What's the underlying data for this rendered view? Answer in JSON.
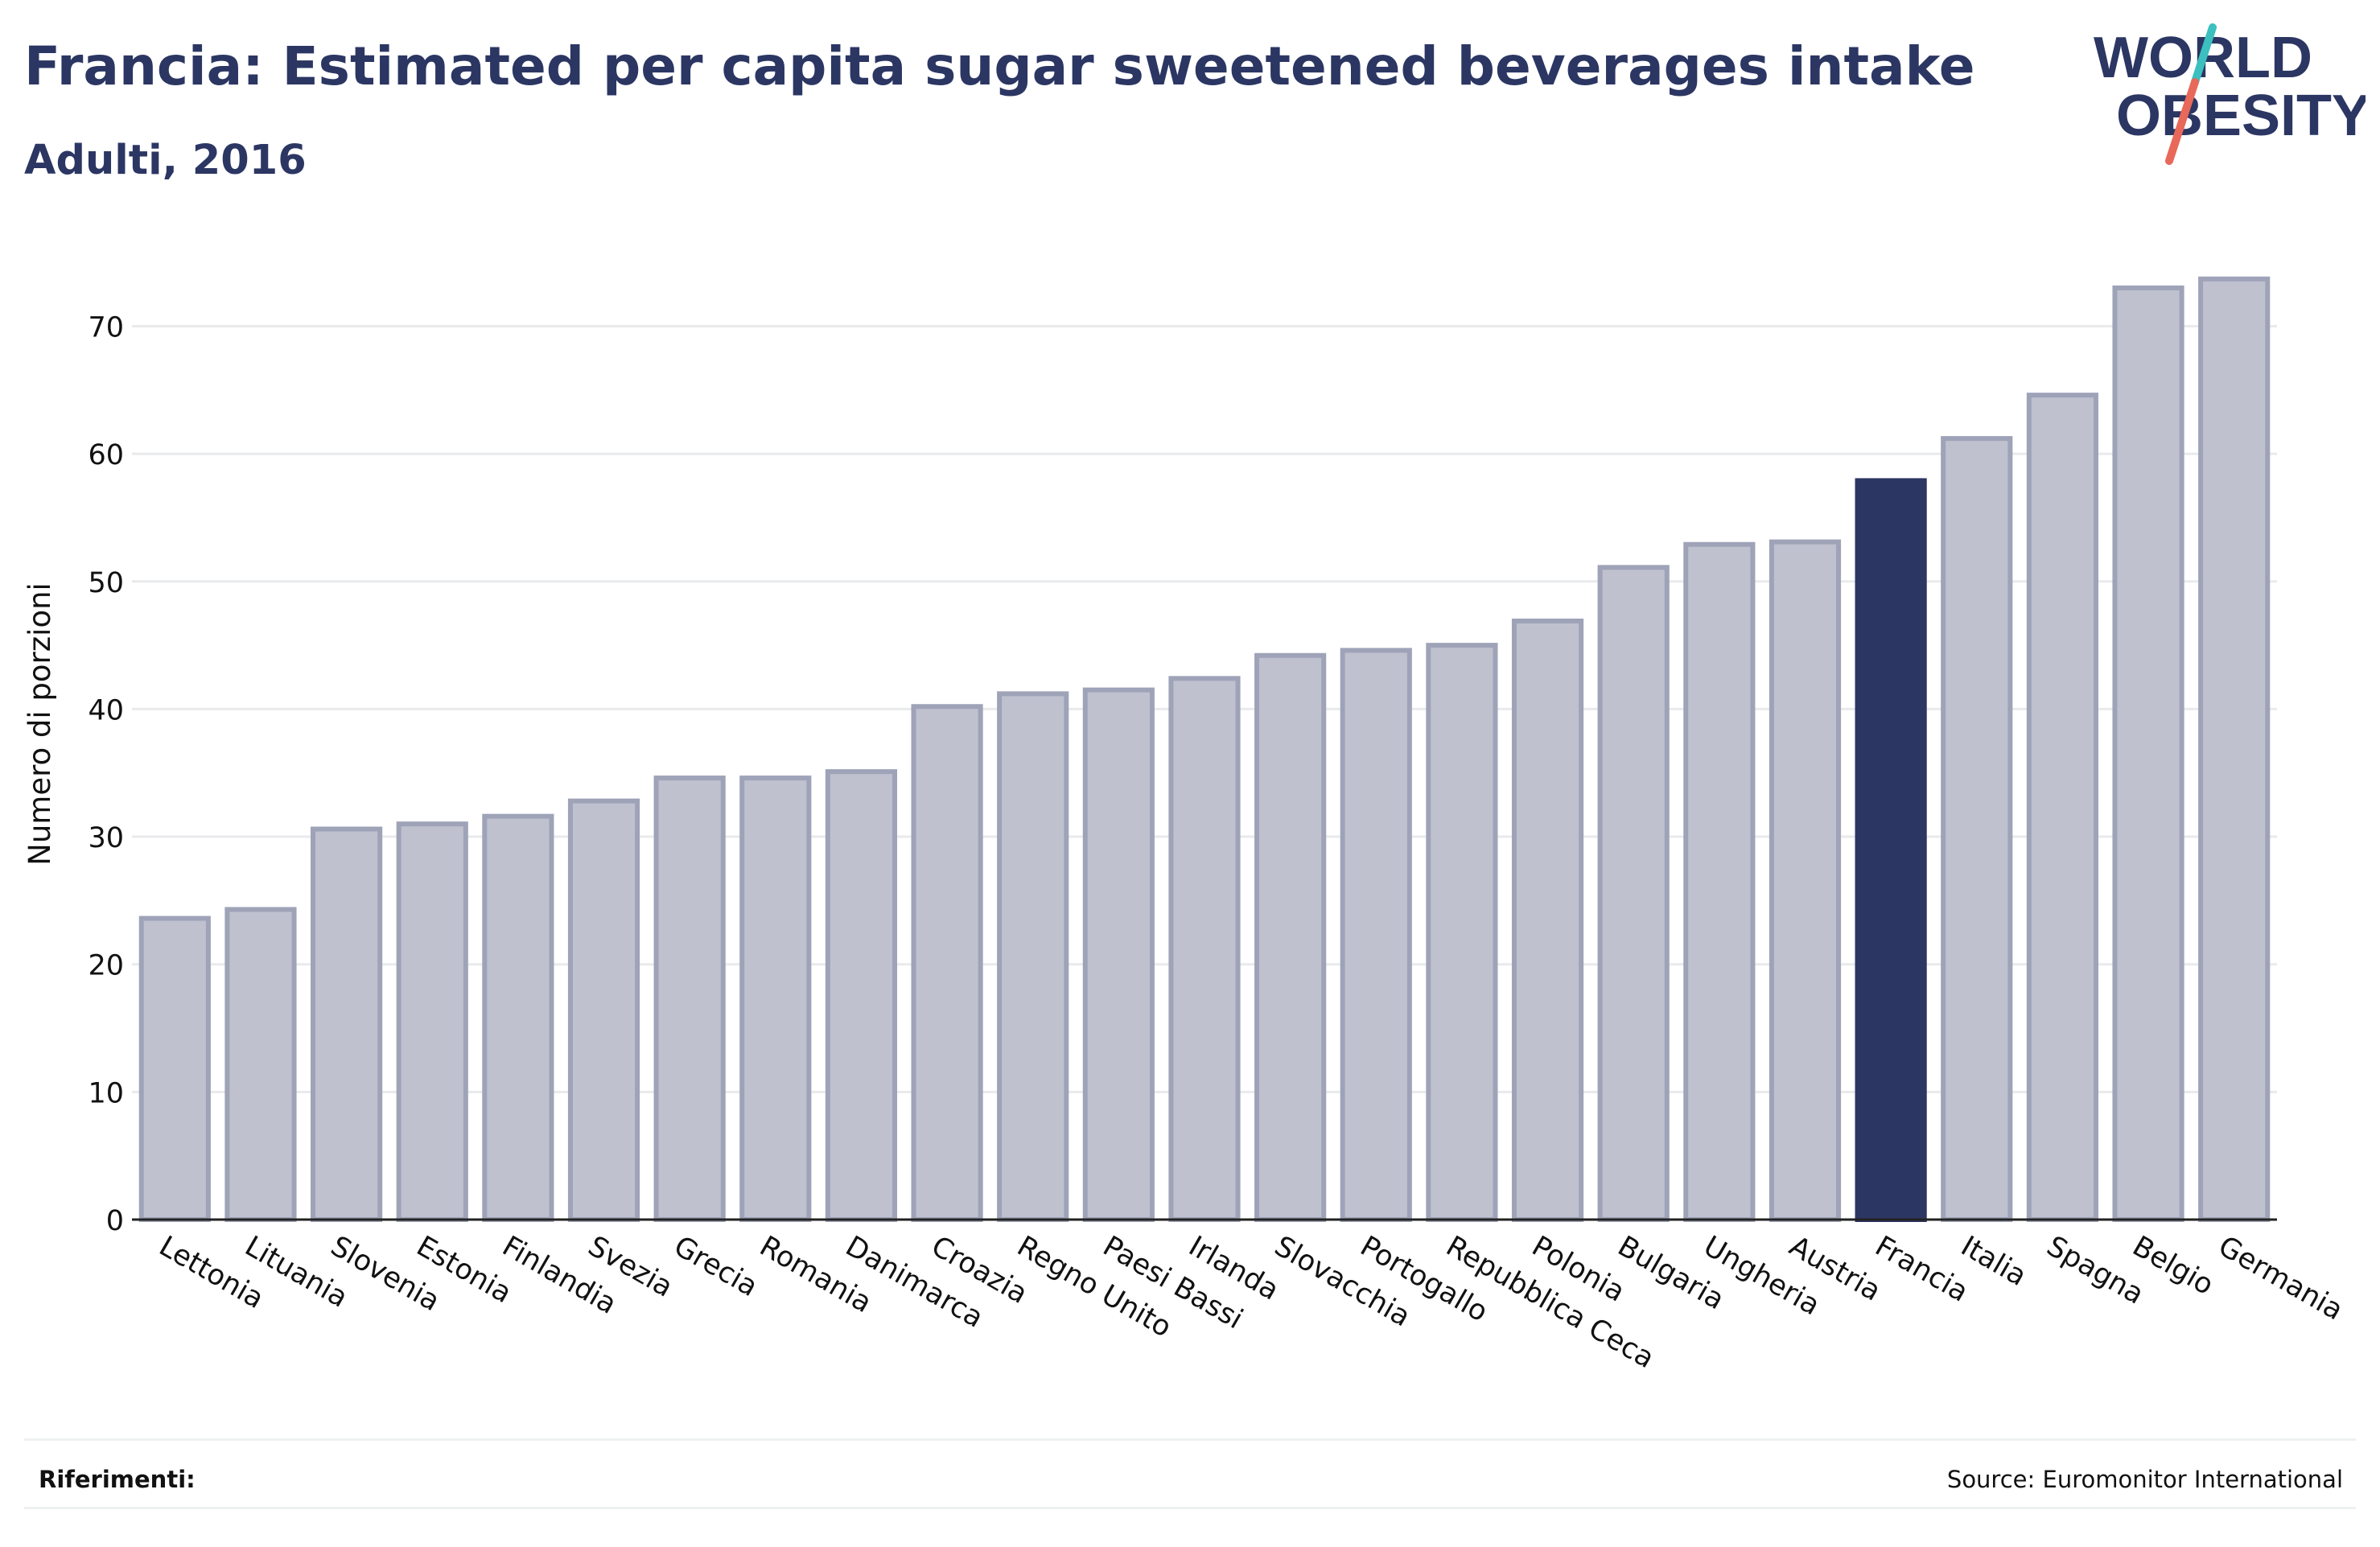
{
  "header": {
    "title": "Francia: Estimated per capita sugar sweetened beverages intake",
    "subtitle": "Adulti, 2016"
  },
  "logo": {
    "line1": "WORLD",
    "line2": "OBESITY",
    "colors": {
      "text": "#2b3663",
      "slash_top": "#3cbfbf",
      "slash_bottom": "#e8685a"
    }
  },
  "footer": {
    "references_label": "Riferimenti:",
    "source": "Source: Euromonitor International"
  },
  "colors": {
    "bar": "#bfc1cf",
    "bar_border": "#9fa3b8",
    "highlight": "#2b3663",
    "grid": "#e8eaec",
    "axis": "#222222"
  },
  "chart_data": {
    "type": "bar",
    "title": "Francia: Estimated per capita sugar sweetened beverages intake",
    "subtitle": "Adulti, 2016",
    "xlabel": "",
    "ylabel": "Numero di porzioni",
    "ylim": [
      0,
      74
    ],
    "yticks": [
      0,
      10,
      20,
      30,
      40,
      50,
      60,
      70
    ],
    "grid": true,
    "highlight": "Francia",
    "categories": [
      "Lettonia",
      "Lituania",
      "Slovenia",
      "Estonia",
      "Finlandia",
      "Svezia",
      "Grecia",
      "Romania",
      "Danimarca",
      "Croazia",
      "Regno Unito",
      "Paesi Bassi",
      "Irlanda",
      "Slovacchia",
      "Portogallo",
      "Repubblica Ceca",
      "Polonia",
      "Bulgaria",
      "Ungheria",
      "Austria",
      "Francia",
      "Italia",
      "Spagna",
      "Belgio",
      "Germania"
    ],
    "values": [
      23.6,
      24.3,
      30.6,
      31.0,
      31.6,
      32.8,
      34.6,
      34.6,
      35.1,
      40.2,
      41.2,
      41.5,
      42.4,
      44.2,
      44.6,
      45.0,
      46.9,
      51.1,
      52.9,
      53.1,
      57.9,
      61.2,
      64.6,
      73.0,
      73.7
    ]
  }
}
